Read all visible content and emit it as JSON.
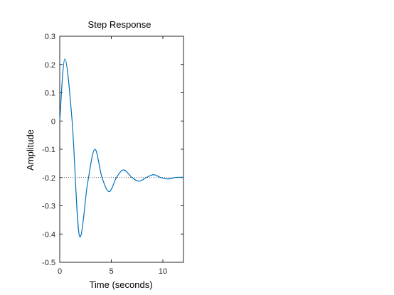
{
  "chart_data": {
    "type": "line",
    "title": "Step Response",
    "xlabel": "Time (seconds)",
    "ylabel": "Amplitude",
    "xlim": [
      0,
      12
    ],
    "ylim": [
      -0.5,
      0.3
    ],
    "x_ticks": [
      0,
      5,
      10
    ],
    "y_ticks": [
      0.3,
      0.2,
      0.1,
      0,
      -0.1,
      -0.2,
      -0.3,
      -0.4,
      -0.5
    ],
    "x_tick_labels": [
      "0",
      "5",
      "10"
    ],
    "y_tick_labels": [
      "0.3",
      "0.2",
      "0.1",
      "0",
      "-0.1",
      "-0.2",
      "-0.3",
      "-0.4",
      "-0.5"
    ],
    "grid": false,
    "steady_state": {
      "y": -0.2,
      "style": "dotted"
    },
    "series": [
      {
        "color": "#0072BD",
        "x": [
          0,
          0.5,
          1.2,
          1.9,
          2.7,
          3.4,
          4.1,
          4.8,
          5.5,
          6.2,
          7.0,
          7.7,
          8.4,
          9.1,
          9.8,
          10.5,
          11.2,
          12.0
        ],
        "y": [
          0,
          0.22,
          0.0,
          -0.405,
          -0.22,
          -0.1,
          -0.2,
          -0.25,
          -0.2,
          -0.173,
          -0.2,
          -0.213,
          -0.2,
          -0.19,
          -0.2,
          -0.205,
          -0.2,
          -0.199
        ]
      }
    ]
  },
  "colors": {
    "axis": "#262626",
    "line": "#0072BD",
    "steady_state": "#262626"
  }
}
